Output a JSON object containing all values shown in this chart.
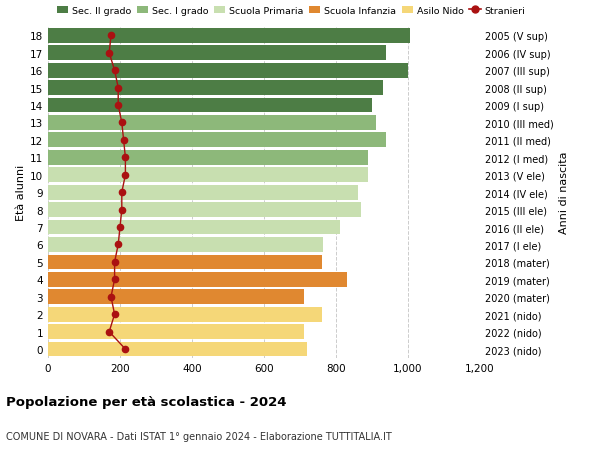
{
  "ages": [
    0,
    1,
    2,
    3,
    4,
    5,
    6,
    7,
    8,
    9,
    10,
    11,
    12,
    13,
    14,
    15,
    16,
    17,
    18
  ],
  "bar_values": [
    720,
    710,
    760,
    710,
    830,
    760,
    765,
    810,
    870,
    860,
    890,
    890,
    940,
    910,
    900,
    930,
    1000,
    940,
    1005
  ],
  "stranieri_values": [
    215,
    170,
    185,
    175,
    185,
    185,
    195,
    200,
    205,
    205,
    215,
    215,
    210,
    205,
    195,
    195,
    185,
    170,
    175
  ],
  "right_labels": [
    "2023 (nido)",
    "2022 (nido)",
    "2021 (nido)",
    "2020 (mater)",
    "2019 (mater)",
    "2018 (mater)",
    "2017 (I ele)",
    "2016 (II ele)",
    "2015 (III ele)",
    "2014 (IV ele)",
    "2013 (V ele)",
    "2012 (I med)",
    "2011 (II med)",
    "2010 (III med)",
    "2009 (I sup)",
    "2008 (II sup)",
    "2007 (III sup)",
    "2006 (IV sup)",
    "2005 (V sup)"
  ],
  "bar_colors": [
    "#F5D778",
    "#F5D778",
    "#F5D778",
    "#E08830",
    "#E08830",
    "#E08830",
    "#C8DFB0",
    "#C8DFB0",
    "#C8DFB0",
    "#C8DFB0",
    "#C8DFB0",
    "#8DB87A",
    "#8DB87A",
    "#8DB87A",
    "#4D7D45",
    "#4D7D45",
    "#4D7D45",
    "#4D7D45",
    "#4D7D45"
  ],
  "legend_labels": [
    "Sec. II grado",
    "Sec. I grado",
    "Scuola Primaria",
    "Scuola Infanzia",
    "Asilo Nido",
    "Stranieri"
  ],
  "legend_colors": [
    "#4D7D45",
    "#8DB87A",
    "#C8DFB0",
    "#E08830",
    "#F5D778",
    "#AA1111"
  ],
  "title": "Popolazione per età scolastica - 2024",
  "subtitle": "COMUNE DI NOVARA - Dati ISTAT 1° gennaio 2024 - Elaborazione TUTTITALIA.IT",
  "ylabel_left": "Età alunni",
  "ylabel_right": "Anni di nascita",
  "xlim": [
    0,
    1200
  ],
  "xticks": [
    0,
    200,
    400,
    600,
    800,
    1000,
    1200
  ],
  "stranieri_color": "#AA1111",
  "background_color": "#FFFFFF",
  "grid_color": "#CCCCCC"
}
